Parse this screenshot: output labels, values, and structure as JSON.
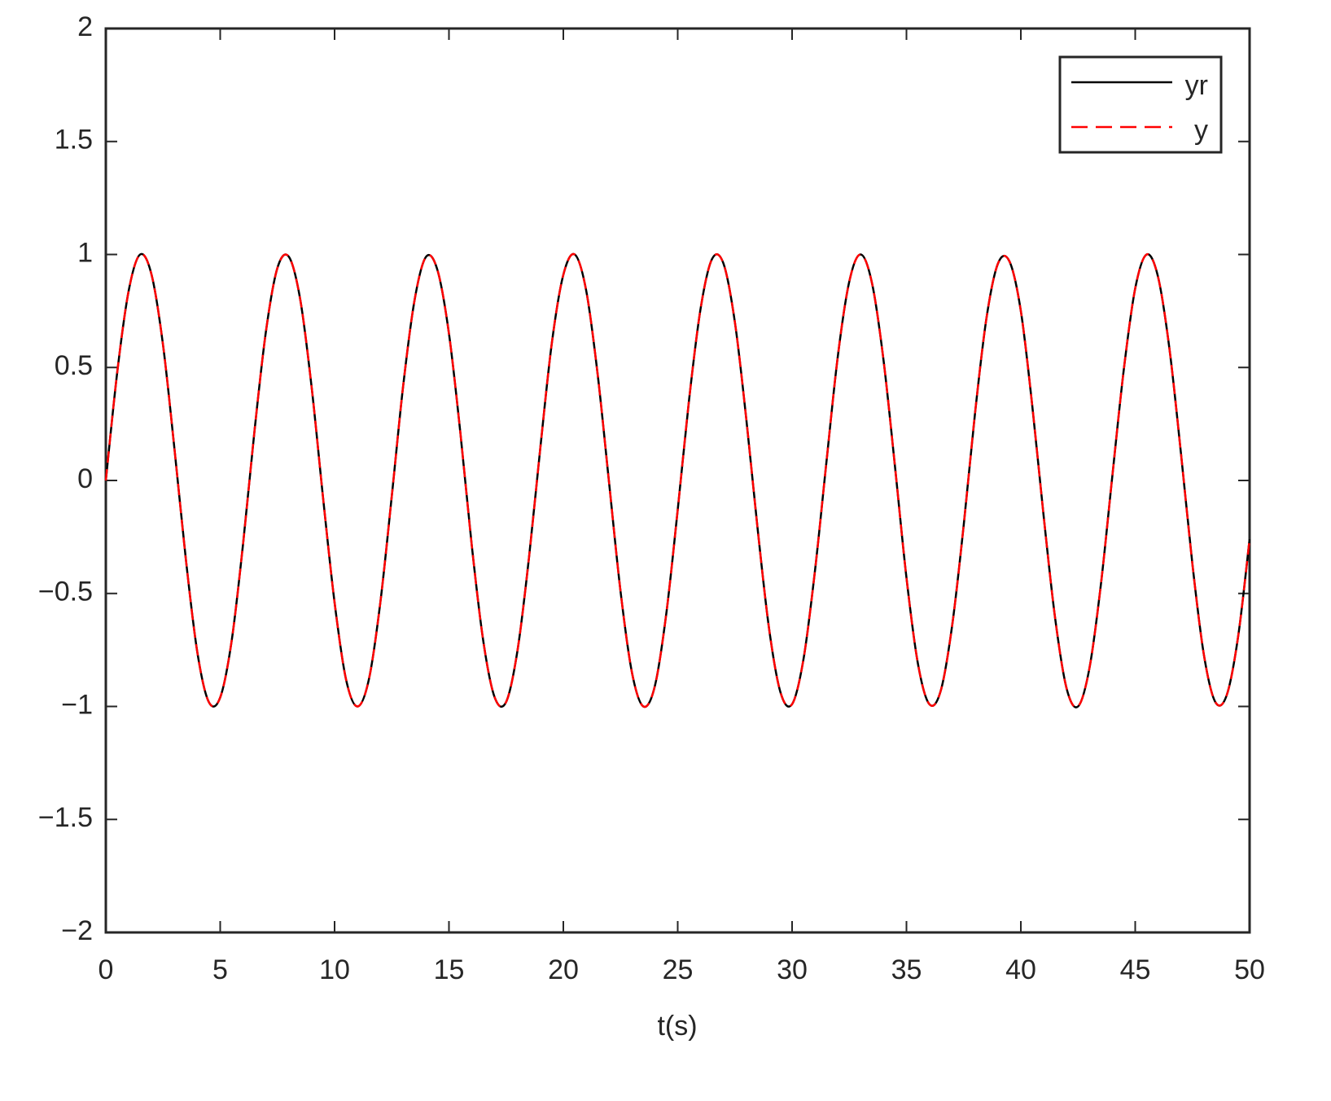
{
  "chart_data": {
    "type": "line",
    "x_label": "t(s)",
    "x": [
      0,
      0.5,
      1,
      1.5,
      2,
      2.5,
      3,
      3.5,
      4,
      4.5,
      5,
      5.5,
      6,
      6.5,
      7,
      7.5,
      8,
      8.5,
      9,
      9.5,
      10,
      10.5,
      11,
      11.5,
      12,
      12.5,
      13,
      13.5,
      14,
      14.5,
      15,
      15.5,
      16,
      16.5,
      17,
      17.5,
      18,
      18.5,
      19,
      19.5,
      20,
      20.5,
      21,
      21.5,
      22,
      22.5,
      23,
      23.5,
      24,
      24.5,
      25,
      25.5,
      26,
      26.5,
      27,
      27.5,
      28,
      28.5,
      29,
      29.5,
      30,
      30.5,
      31,
      31.5,
      32,
      32.5,
      33,
      33.5,
      34,
      34.5,
      35,
      35.5,
      36,
      36.5,
      37,
      37.5,
      38,
      38.5,
      39,
      39.5,
      40,
      40.5,
      41,
      41.5,
      42,
      42.5,
      43,
      43.5,
      44,
      44.5,
      45,
      45.5,
      46,
      46.5,
      47,
      47.5,
      48,
      48.5,
      49,
      49.5,
      50
    ],
    "series": [
      {
        "name": "yr",
        "color": "#000000",
        "dashed": false,
        "values": [
          0,
          0.48,
          0.84,
          1.0,
          0.91,
          0.6,
          0.14,
          -0.35,
          -0.76,
          -0.98,
          -0.96,
          -0.71,
          -0.28,
          0.22,
          0.66,
          0.94,
          0.99,
          0.8,
          0.41,
          -0.08,
          -0.54,
          -0.88,
          -1.0,
          -0.88,
          -0.54,
          -0.07,
          0.42,
          0.8,
          0.99,
          0.93,
          0.65,
          0.21,
          -0.29,
          -0.71,
          -0.96,
          -0.98,
          -0.75,
          -0.34,
          0.15,
          0.61,
          0.91,
          1.0,
          0.84,
          0.47,
          -0.01,
          -0.49,
          -0.85,
          -1.0,
          -0.91,
          -0.59,
          -0.13,
          0.36,
          0.76,
          0.98,
          0.96,
          0.7,
          0.27,
          -0.22,
          -0.66,
          -0.94,
          -0.99,
          -0.79,
          -0.4,
          0.08,
          0.55,
          0.88,
          1.0,
          0.87,
          0.53,
          0.06,
          -0.43,
          -0.81,
          -0.99,
          -0.93,
          -0.64,
          -0.2,
          0.3,
          0.72,
          0.96,
          0.97,
          0.75,
          0.33,
          -0.16,
          -0.61,
          -0.92,
          -1.0,
          -0.83,
          -0.46,
          0.02,
          0.49,
          0.85,
          1.0,
          0.9,
          0.58,
          0.12,
          -0.37,
          -0.77,
          -0.98,
          -0.95,
          -0.69,
          -0.26
        ]
      },
      {
        "name": "y",
        "color": "#ff0000",
        "dashed": true,
        "values": [
          0,
          0.48,
          0.84,
          1.0,
          0.91,
          0.6,
          0.14,
          -0.35,
          -0.76,
          -0.98,
          -0.96,
          -0.71,
          -0.28,
          0.22,
          0.66,
          0.94,
          0.99,
          0.8,
          0.41,
          -0.08,
          -0.54,
          -0.88,
          -1.0,
          -0.88,
          -0.54,
          -0.07,
          0.42,
          0.8,
          0.99,
          0.93,
          0.65,
          0.21,
          -0.29,
          -0.71,
          -0.96,
          -0.98,
          -0.75,
          -0.34,
          0.15,
          0.61,
          0.91,
          1.0,
          0.84,
          0.47,
          -0.01,
          -0.49,
          -0.85,
          -1.0,
          -0.91,
          -0.59,
          -0.13,
          0.36,
          0.76,
          0.98,
          0.96,
          0.7,
          0.27,
          -0.22,
          -0.66,
          -0.94,
          -0.99,
          -0.79,
          -0.4,
          0.08,
          0.55,
          0.88,
          1.0,
          0.87,
          0.53,
          0.06,
          -0.43,
          -0.81,
          -0.99,
          -0.93,
          -0.64,
          -0.2,
          0.3,
          0.72,
          0.96,
          0.97,
          0.75,
          0.33,
          -0.16,
          -0.61,
          -0.92,
          -1.0,
          -0.83,
          -0.46,
          0.02,
          0.49,
          0.85,
          1.0,
          0.9,
          0.58,
          0.12,
          -0.37,
          -0.77,
          -0.98,
          -0.95,
          -0.69,
          -0.26
        ]
      }
    ],
    "xlim": [
      0,
      50
    ],
    "xticks": [
      0,
      5,
      10,
      15,
      20,
      25,
      30,
      35,
      40,
      45,
      50
    ],
    "ylim": [
      -2,
      2
    ],
    "yticks": [
      {
        "value": -2,
        "label": "−2"
      },
      {
        "value": -1.5,
        "label": "−1.5"
      },
      {
        "value": -1,
        "label": "−1"
      },
      {
        "value": -0.5,
        "label": "−0.5"
      },
      0,
      0.5,
      1,
      1.5,
      2
    ],
    "grid": false,
    "legend": "top-right"
  }
}
